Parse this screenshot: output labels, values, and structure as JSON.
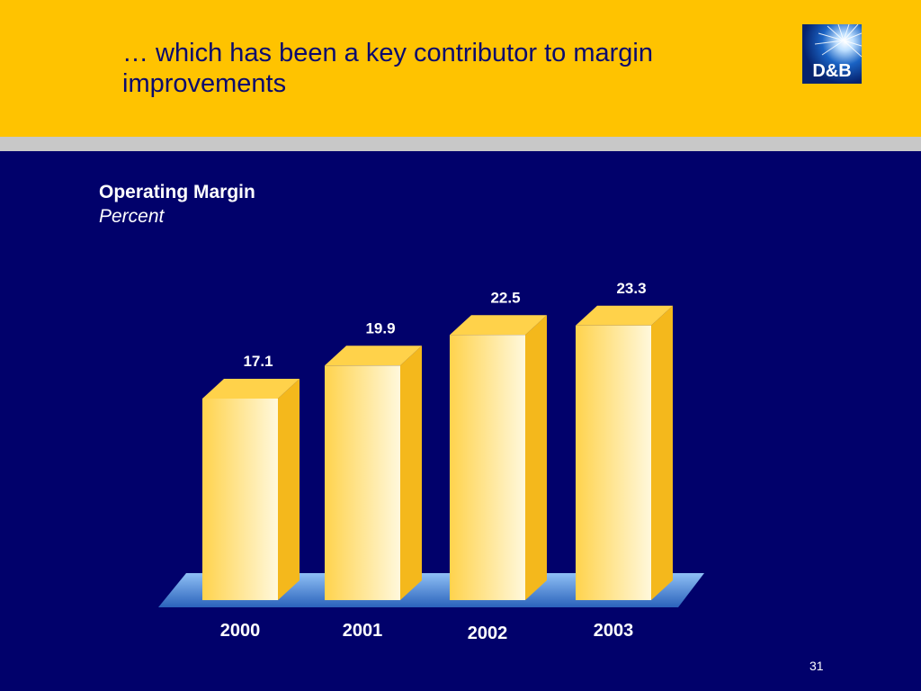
{
  "slide": {
    "title": "… which has been a key contributor to margin improvements",
    "page_number": "31",
    "logo_text": "D&B"
  },
  "colors": {
    "header_bg": "#ffc300",
    "stripe": "#c8c8c8",
    "background": "#01016b",
    "bar_light": "#fff8dc",
    "bar_dark": "#ffd34d",
    "bar_side": "#f4b81c",
    "bar_top": "#ffd24a",
    "floor": "#4f8fd8"
  },
  "chart_data": {
    "type": "bar",
    "title": "Operating Margin",
    "subtitle": "Percent",
    "categories": [
      "2000",
      "2001",
      "2002",
      "2003"
    ],
    "values": [
      17.1,
      19.9,
      22.5,
      23.3
    ],
    "data_labels": [
      "17.1",
      "19.9",
      "22.5",
      "23.3"
    ],
    "ylim": [
      0,
      25
    ],
    "grid": false,
    "legend": "none"
  }
}
